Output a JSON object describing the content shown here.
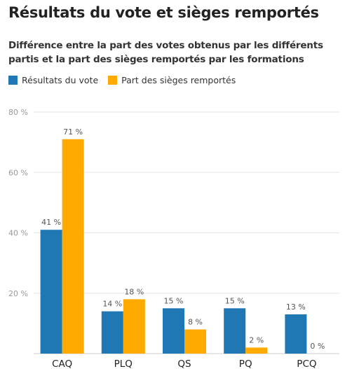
{
  "title": "Résultats du vote et sièges remportés",
  "subtitle": "Différence entre la part des votes obtenus par les différents partis et la part des sièges remportés par les formations",
  "legend": {
    "items": [
      {
        "label": "Résultats du vote",
        "color": "#1f77b4"
      },
      {
        "label": "Part des sièges remportés",
        "color": "#ffaa00"
      }
    ]
  },
  "chart_data": {
    "type": "bar",
    "categories": [
      "CAQ",
      "PLQ",
      "QS",
      "PQ",
      "PCQ"
    ],
    "series": [
      {
        "name": "Résultats du vote",
        "color": "#1f77b4",
        "values": [
          41,
          14,
          15,
          15,
          13
        ],
        "labels": [
          "41 %",
          "14 %",
          "15 %",
          "15 %",
          "13 %"
        ]
      },
      {
        "name": "Part des sièges remportés",
        "color": "#ffaa00",
        "values": [
          71,
          18,
          8,
          2,
          0
        ],
        "labels": [
          "71 %",
          "18 %",
          "8 %",
          "2 %",
          "0 %"
        ]
      }
    ],
    "ylim": [
      0,
      80
    ],
    "yticks": [
      0,
      20,
      40,
      60,
      80
    ],
    "ytick_labels": [
      "",
      "20 %",
      "40 %",
      "60 %",
      "80 %"
    ],
    "grid": true,
    "legend_position": "top-left"
  }
}
